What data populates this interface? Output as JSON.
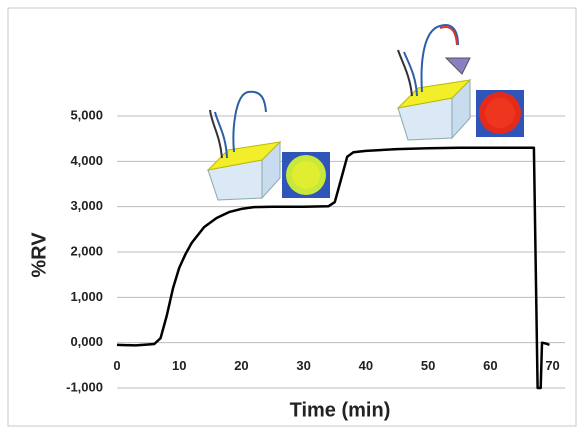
{
  "chart_data": {
    "type": "line",
    "x_label": "Time (min)",
    "y_label": "%RV",
    "xlim": [
      0,
      72
    ],
    "ylim": [
      -1000,
      5000
    ],
    "xticks": [
      0,
      10,
      20,
      30,
      40,
      50,
      60,
      70
    ],
    "yticks": [
      {
        "value": -1000,
        "label": "-1,000"
      },
      {
        "value": 0,
        "label": "0,000"
      },
      {
        "value": 1000,
        "label": "1,000"
      },
      {
        "value": 2000,
        "label": "2,000"
      },
      {
        "value": 3000,
        "label": "3,000"
      },
      {
        "value": 4000,
        "label": "4,000"
      },
      {
        "value": 5000,
        "label": "5,000"
      }
    ],
    "grid": true,
    "x": [
      0,
      3,
      5,
      6,
      7,
      8,
      9,
      10,
      11,
      12,
      14,
      16,
      18,
      20,
      22,
      25,
      30,
      34,
      35,
      36,
      37,
      38,
      40,
      45,
      50,
      55,
      60,
      67,
      67.6,
      68.1,
      68.3,
      69,
      69.5
    ],
    "series": [
      {
        "color": "#000000",
        "values": [
          -50,
          -60,
          -40,
          -30,
          100,
          600,
          1200,
          1650,
          1950,
          2200,
          2550,
          2750,
          2880,
          2950,
          2990,
          3000,
          3000,
          3010,
          3100,
          3600,
          4100,
          4200,
          4230,
          4270,
          4290,
          4300,
          4300,
          4300,
          -1000,
          -1000,
          0,
          -20,
          -50
        ]
      }
    ]
  }
}
